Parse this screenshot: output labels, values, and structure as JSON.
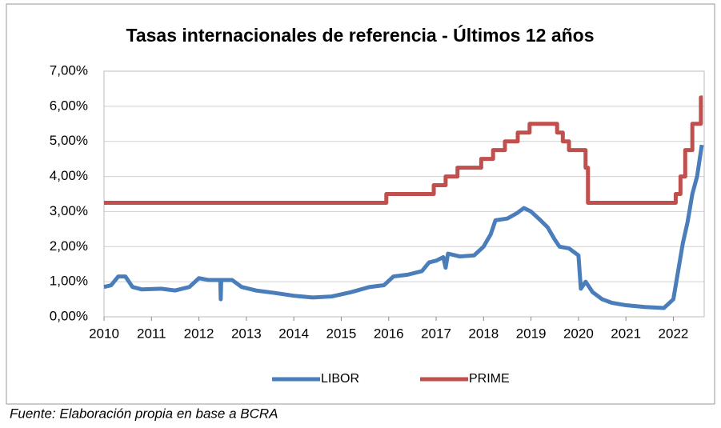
{
  "chart_data": {
    "type": "line",
    "title": "Tasas internacionales de referencia - Últimos 12 años",
    "source": "Fuente: Elaboración propia en base a BCRA",
    "xlim": [
      2010,
      2022.65
    ],
    "xticks": [
      2010,
      2011,
      2012,
      2013,
      2014,
      2015,
      2016,
      2017,
      2018,
      2019,
      2020,
      2021,
      2022
    ],
    "ylim": [
      0,
      7
    ],
    "yticks": [
      {
        "value": 0,
        "label": "0,00%"
      },
      {
        "value": 1,
        "label": "1,00%"
      },
      {
        "value": 2,
        "label": "2,00%"
      },
      {
        "value": 3,
        "label": "3,00%"
      },
      {
        "value": 4,
        "label": "4,00%"
      },
      {
        "value": 5,
        "label": "5,00%"
      },
      {
        "value": 6,
        "label": "6,00%"
      },
      {
        "value": 7,
        "label": "7,00%"
      }
    ],
    "grid": true,
    "legend": "bottom",
    "series": [
      {
        "name": "LIBOR",
        "color": "#4a7ebb",
        "x": [
          2010,
          2010.15,
          2010.3,
          2010.45,
          2010.6,
          2010.8,
          2011.2,
          2011.5,
          2011.8,
          2012.0,
          2012.2,
          2012.45,
          2012.46,
          2012.47,
          2012.7,
          2012.9,
          2013.2,
          2013.6,
          2014.0,
          2014.4,
          2014.8,
          2015.2,
          2015.6,
          2015.9,
          2016.1,
          2016.4,
          2016.7,
          2016.85,
          2017.0,
          2017.15,
          2017.2,
          2017.25,
          2017.5,
          2017.8,
          2018.0,
          2018.15,
          2018.25,
          2018.5,
          2018.7,
          2018.85,
          2019.0,
          2019.2,
          2019.35,
          2019.5,
          2019.6,
          2019.8,
          2020.0,
          2020.05,
          2020.15,
          2020.3,
          2020.5,
          2020.7,
          2021.0,
          2021.4,
          2021.8,
          2022.0,
          2022.1,
          2022.2,
          2022.3,
          2022.4,
          2022.5,
          2022.6
        ],
        "values": [
          0.85,
          0.9,
          1.15,
          1.15,
          0.85,
          0.78,
          0.8,
          0.75,
          0.85,
          1.1,
          1.05,
          1.05,
          0.5,
          1.05,
          1.05,
          0.85,
          0.75,
          0.68,
          0.6,
          0.55,
          0.58,
          0.7,
          0.85,
          0.9,
          1.15,
          1.2,
          1.3,
          1.55,
          1.6,
          1.7,
          1.4,
          1.8,
          1.72,
          1.75,
          2.0,
          2.35,
          2.75,
          2.8,
          2.95,
          3.1,
          3.0,
          2.75,
          2.55,
          2.2,
          2.0,
          1.95,
          1.75,
          0.8,
          1.0,
          0.7,
          0.5,
          0.4,
          0.33,
          0.28,
          0.25,
          0.5,
          1.3,
          2.1,
          2.7,
          3.5,
          4.0,
          4.9
        ]
      },
      {
        "name": "PRIME",
        "color": "#c0504d",
        "x": [
          2010,
          2015.95,
          2015.95,
          2016.95,
          2016.95,
          2017.2,
          2017.2,
          2017.45,
          2017.45,
          2017.95,
          2017.95,
          2018.2,
          2018.2,
          2018.45,
          2018.45,
          2018.72,
          2018.72,
          2018.97,
          2018.97,
          2019.55,
          2019.55,
          2019.67,
          2019.67,
          2019.8,
          2019.8,
          2020.15,
          2020.15,
          2020.2,
          2020.2,
          2022.05,
          2022.05,
          2022.15,
          2022.15,
          2022.25,
          2022.25,
          2022.4,
          2022.4,
          2022.58,
          2022.58,
          2022.62
        ],
        "values": [
          3.25,
          3.25,
          3.5,
          3.5,
          3.75,
          3.75,
          4.0,
          4.0,
          4.25,
          4.25,
          4.5,
          4.5,
          4.75,
          4.75,
          5.0,
          5.0,
          5.25,
          5.25,
          5.5,
          5.5,
          5.25,
          5.25,
          5.0,
          5.0,
          4.75,
          4.75,
          4.25,
          4.25,
          3.25,
          3.25,
          3.5,
          3.5,
          4.0,
          4.0,
          4.75,
          4.75,
          5.5,
          5.5,
          6.25,
          6.25
        ]
      }
    ]
  }
}
